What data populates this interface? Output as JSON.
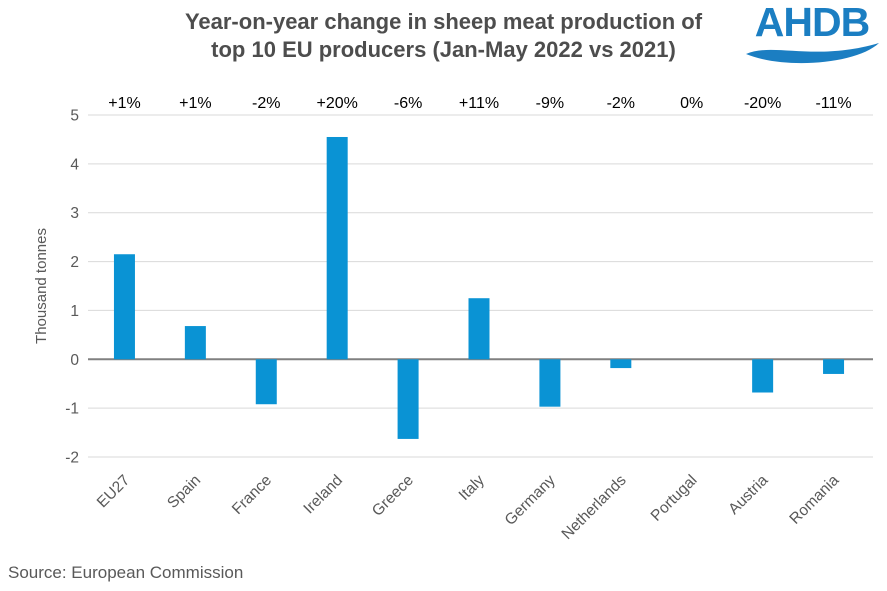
{
  "header": {
    "title_line1": "Year-on-year change in sheep meat production of",
    "title_line2": "top 10 EU producers (Jan-May 2022 vs 2021)",
    "logo_text": "AHDB"
  },
  "chart_data": {
    "type": "bar",
    "title": "Year-on-year change in sheep meat production of top 10 EU producers (Jan-May 2022 vs 2021)",
    "categories": [
      "EU27",
      "Spain",
      "France",
      "Ireland",
      "Greece",
      "Italy",
      "Germany",
      "Netherlands",
      "Portugal",
      "Austria",
      "Romania"
    ],
    "values": [
      2.15,
      0.68,
      -0.92,
      4.55,
      -1.63,
      1.25,
      -0.97,
      -0.18,
      0,
      -0.68,
      -0.3
    ],
    "bar_labels": [
      "+1%",
      "+1%",
      "-2%",
      "+20%",
      "-6%",
      "+11%",
      "-9%",
      "-2%",
      "0%",
      "-20%",
      "-11%"
    ],
    "ylabel": "Thousand tonnes",
    "xlabel": "",
    "yticks": [
      5,
      4,
      3,
      2,
      1,
      0,
      -1,
      -2
    ],
    "ylim": [
      -2,
      5
    ],
    "grid": true,
    "legend": false
  },
  "footer": {
    "source": "Source: European Commission"
  },
  "colors": {
    "logo_blue": "#1b7ec2",
    "bar_blue": "#0a93d4",
    "title_gray": "#4d4d4d",
    "text_gray": "#595959",
    "grid_gray": "#d9d9d9",
    "zero_axis_gray": "#808080",
    "percent_label_black": "#000000"
  }
}
